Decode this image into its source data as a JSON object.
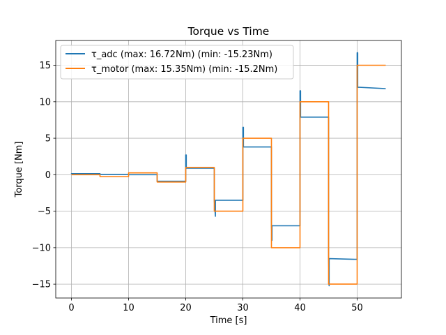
{
  "chart_data": {
    "type": "line",
    "title": "Torque vs Time",
    "xlabel": "Time [s]",
    "ylabel": "Torque [Nm]",
    "xlim": [
      -2.75,
      57.75
    ],
    "ylim": [
      -16.9,
      18.4
    ],
    "xticks": [
      0,
      10,
      20,
      30,
      40,
      50
    ],
    "yticks": [
      -15,
      -10,
      -5,
      0,
      5,
      10,
      15
    ],
    "xtick_labels": [
      "0",
      "10",
      "20",
      "30",
      "40",
      "50"
    ],
    "ytick_labels": [
      "−15",
      "−10",
      "−5",
      "0",
      "5",
      "10",
      "15"
    ],
    "grid": true,
    "legend_position": "top-left",
    "series": [
      {
        "name": "τ_adc (max: 16.72Nm) (min: -15.23Nm)",
        "color": "#1f77b4",
        "x": [
          0,
          0,
          5,
          5,
          10,
          10,
          15,
          15,
          20,
          20,
          20.1,
          20.1,
          25,
          25,
          25.2,
          25.2,
          30,
          30,
          30.1,
          30.1,
          35,
          35,
          35.1,
          35.1,
          40,
          40,
          40.1,
          40.1,
          45,
          45,
          45.1,
          45.1,
          50,
          50,
          50.1,
          50.1,
          55
        ],
        "y": [
          0.1,
          0.15,
          0.15,
          0.05,
          0.05,
          0.0,
          0.0,
          -0.9,
          -0.9,
          2.7,
          2.7,
          0.9,
          0.9,
          -3.5,
          -5.7,
          -3.5,
          -3.5,
          6.5,
          6.5,
          3.8,
          3.8,
          -7.0,
          -9.0,
          -7.0,
          -7.0,
          11.5,
          11.5,
          7.9,
          7.9,
          -11.5,
          -15.23,
          -11.5,
          -11.6,
          16.72,
          16.72,
          12.0,
          11.8
        ]
      },
      {
        "name": "τ_motor (max: 15.35Nm) (min: -15.2Nm)",
        "color": "#ff7f0e",
        "x": [
          0,
          5,
          5,
          10,
          10,
          15,
          15,
          20,
          20,
          25,
          25,
          30,
          30,
          35,
          35,
          40,
          40,
          45,
          45,
          50,
          50,
          55
        ],
        "y": [
          0.0,
          0.0,
          -0.25,
          -0.25,
          0.25,
          0.25,
          -1.0,
          -1.0,
          1.0,
          1.0,
          -5.0,
          -5.0,
          5.0,
          5.0,
          -10.0,
          -10.0,
          10.0,
          10.0,
          -15.0,
          -15.0,
          15.0,
          15.0
        ]
      }
    ]
  }
}
